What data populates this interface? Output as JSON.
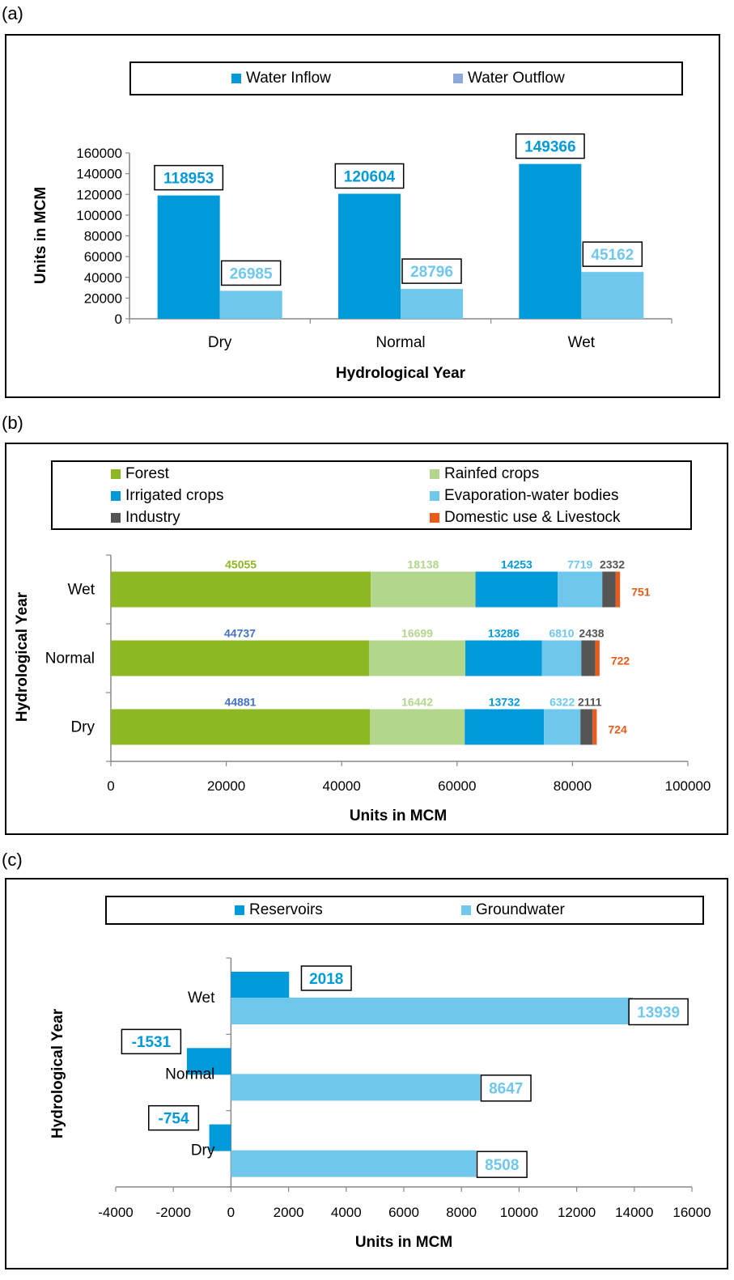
{
  "panels": {
    "a": {
      "label": "(a)"
    },
    "b": {
      "label": "(b)"
    },
    "c": {
      "label": "(c)"
    }
  },
  "colors": {
    "inflow": "#009ADB",
    "outflow": "#6FC8EC",
    "legend_outflow_swatch": "#8EA9DB",
    "forest": "#8DB824",
    "rainfed": "#B3D68D",
    "irrigated": "#009ADB",
    "evaporation": "#6FC8EC",
    "industry": "#555555",
    "domestic": "#EA5B19",
    "blue_label": "#4472C4"
  },
  "chart_data": [
    {
      "type": "bar",
      "categories": [
        "Dry",
        "Normal",
        "Wet"
      ],
      "series": [
        {
          "name": "Water Inflow",
          "values": [
            118953,
            120604,
            149366
          ]
        },
        {
          "name": "Water Outflow",
          "values": [
            26985,
            28796,
            45162
          ]
        }
      ],
      "data_labels": {
        "inflow": [
          "118953",
          "120604",
          "149366"
        ],
        "outflow": [
          "26985",
          "28796",
          "45162"
        ]
      },
      "xlabel": "Hydrological Year",
      "ylabel": "Units in MCM",
      "ylim": [
        0,
        160000
      ],
      "yticks": [
        "0",
        "20000",
        "40000",
        "60000",
        "80000",
        "100000",
        "120000",
        "140000",
        "160000"
      ],
      "legend": "top",
      "grid": false
    },
    {
      "type": "bar",
      "orientation": "horizontal",
      "stacked": true,
      "categories": [
        "Wet",
        "Normal",
        "Dry"
      ],
      "series": [
        {
          "name": "Forest",
          "values": [
            45055,
            44737,
            44881
          ]
        },
        {
          "name": "Rainfed crops",
          "values": [
            18138,
            16699,
            16442
          ]
        },
        {
          "name": "Irrigated crops",
          "values": [
            14253,
            13286,
            13732
          ]
        },
        {
          "name": "Evaporation-water bodies",
          "values": [
            7719,
            6810,
            6322
          ]
        },
        {
          "name": "Industry",
          "values": [
            2332,
            2438,
            2111
          ]
        },
        {
          "name": "Domestic use & Livestock",
          "values": [
            751,
            722,
            724
          ]
        }
      ],
      "data_labels": [
        [
          "45055",
          "18138",
          "14253",
          "7719",
          "2332",
          "751"
        ],
        [
          "44737",
          "16699",
          "13286",
          "6810",
          "2438",
          "722"
        ],
        [
          "44881",
          "16442",
          "13732",
          "6322",
          "2111",
          "724"
        ]
      ],
      "xlabel": "Units in MCM",
      "ylabel": "Hydrological Year",
      "xlim": [
        0,
        100000
      ],
      "xticks": [
        "0",
        "20000",
        "40000",
        "60000",
        "80000",
        "100000"
      ],
      "legend": "top",
      "grid": false
    },
    {
      "type": "bar",
      "orientation": "horizontal",
      "categories": [
        "Wet",
        "Normal",
        "Dry"
      ],
      "series": [
        {
          "name": "Reservoirs",
          "values": [
            2018,
            -1531,
            -754
          ]
        },
        {
          "name": "Groundwater",
          "values": [
            13939,
            8647,
            8508
          ]
        }
      ],
      "data_labels": {
        "reservoirs": [
          "2018",
          "-1531",
          "-754"
        ],
        "groundwater": [
          "13939",
          "8647",
          "8508"
        ]
      },
      "xlabel": "Units in MCM",
      "ylabel": "Hydrological Year",
      "xlim": [
        -4000,
        16000
      ],
      "xticks": [
        "-4000",
        "-2000",
        "0",
        "2000",
        "4000",
        "6000",
        "8000",
        "10000",
        "12000",
        "14000",
        "16000"
      ],
      "legend": "top",
      "grid": false
    }
  ]
}
